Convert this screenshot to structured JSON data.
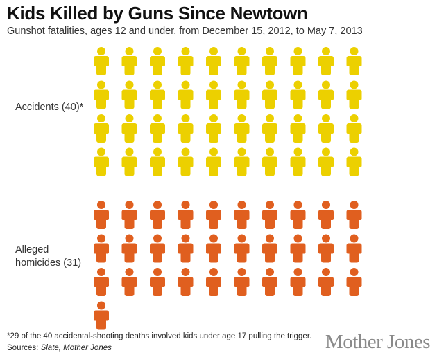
{
  "chart_data": {
    "type": "pictogram",
    "title": "Kids Killed by Guns Since Newtown",
    "subtitle": "Gunshot fatalities, ages 12 and under, from December 15, 2012, to May 7, 2013",
    "icons_per_row": 10,
    "series": [
      {
        "name": "Accidents",
        "label": "Accidents (40)*",
        "value": 40,
        "color": "#ecd000"
      },
      {
        "name": "Alleged homicides",
        "label_line1": "Alleged",
        "label_line2": "homicides (31)",
        "value": 31,
        "color": "#e05f1f"
      }
    ]
  },
  "footnote": "*29 of the 40 accidental-shooting deaths involved kids under age 17 pulling the trigger.",
  "sources_prefix": "Sources: ",
  "sources": "Slate, Mother Jones",
  "logo": "Mother Jones"
}
